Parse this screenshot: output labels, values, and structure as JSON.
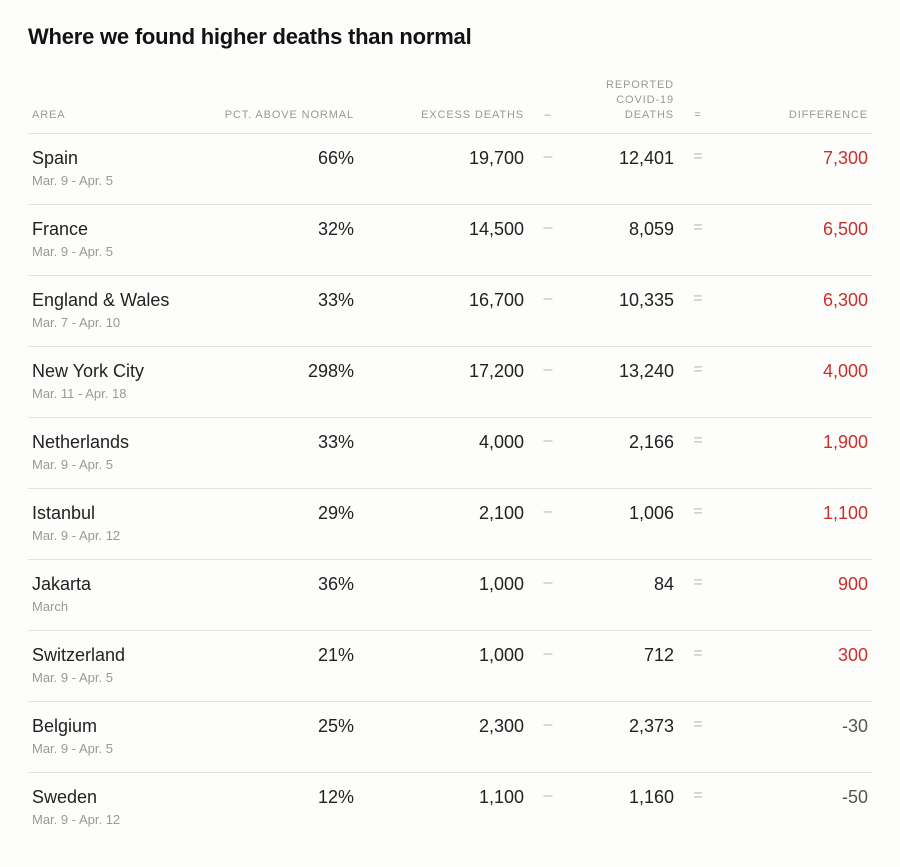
{
  "title": "Where we found higher deaths than normal",
  "table": {
    "type": "table",
    "columns": {
      "area": "AREA",
      "pct": "PCT. ABOVE NORMAL",
      "excess": "EXCESS DEATHS",
      "minus": "–",
      "covid": "REPORTED COVID-19 DEATHS",
      "equals": "=",
      "difference": "DIFFERENCE"
    },
    "operator_color": "#bbbbbb",
    "header_color": "#999999",
    "row_border_color": "#e4e4e2",
    "positive_diff_color": "#c9302c",
    "negative_diff_color": "#555555",
    "rows": [
      {
        "area": "Spain",
        "date": "Mar. 9 - Apr. 5",
        "pct": "66%",
        "excess": "19,700",
        "covid": "12,401",
        "diff": "7,300",
        "positive": true
      },
      {
        "area": "France",
        "date": "Mar. 9 - Apr. 5",
        "pct": "32%",
        "excess": "14,500",
        "covid": "8,059",
        "diff": "6,500",
        "positive": true
      },
      {
        "area": "England & Wales",
        "date": "Mar. 7 - Apr. 10",
        "pct": "33%",
        "excess": "16,700",
        "covid": "10,335",
        "diff": "6,300",
        "positive": true
      },
      {
        "area": "New York City",
        "date": "Mar. 11 - Apr. 18",
        "pct": "298%",
        "excess": "17,200",
        "covid": "13,240",
        "diff": "4,000",
        "positive": true
      },
      {
        "area": "Netherlands",
        "date": "Mar. 9 - Apr. 5",
        "pct": "33%",
        "excess": "4,000",
        "covid": "2,166",
        "diff": "1,900",
        "positive": true
      },
      {
        "area": "Istanbul",
        "date": "Mar. 9 - Apr. 12",
        "pct": "29%",
        "excess": "2,100",
        "covid": "1,006",
        "diff": "1,100",
        "positive": true
      },
      {
        "area": "Jakarta",
        "date": "March",
        "pct": "36%",
        "excess": "1,000",
        "covid": "84",
        "diff": "900",
        "positive": true
      },
      {
        "area": "Switzerland",
        "date": "Mar. 9 - Apr. 5",
        "pct": "21%",
        "excess": "1,000",
        "covid": "712",
        "diff": "300",
        "positive": true
      },
      {
        "area": "Belgium",
        "date": "Mar. 9 - Apr. 5",
        "pct": "25%",
        "excess": "2,300",
        "covid": "2,373",
        "diff": "-30",
        "positive": false
      },
      {
        "area": "Sweden",
        "date": "Mar. 9 - Apr. 12",
        "pct": "12%",
        "excess": "1,100",
        "covid": "1,160",
        "diff": "-50",
        "positive": false
      }
    ]
  }
}
